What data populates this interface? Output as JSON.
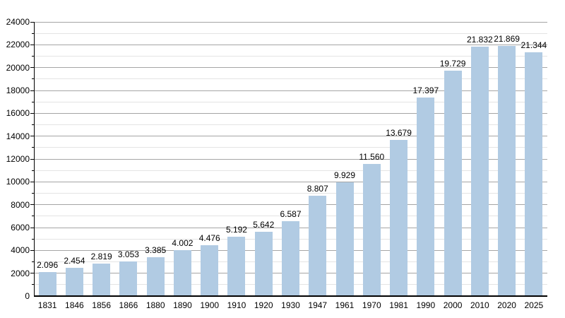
{
  "page": {
    "background": "#ffffff"
  },
  "chart_data": {
    "type": "bar",
    "title": "",
    "xlabel": "",
    "ylabel": "",
    "categories": [
      "1831",
      "1846",
      "1856",
      "1866",
      "1880",
      "1890",
      "1900",
      "1910",
      "1920",
      "1930",
      "1947",
      "1961",
      "1970",
      "1981",
      "1990",
      "2000",
      "2010",
      "2020",
      "2025"
    ],
    "values": [
      2096,
      2454,
      2819,
      3053,
      3385,
      4002,
      4476,
      5192,
      5642,
      6587,
      8807,
      9929,
      11560,
      13679,
      17397,
      19729,
      21832,
      21869,
      21344
    ],
    "value_labels": [
      "2.096",
      "2.454",
      "2.819",
      "3.053",
      "3.385",
      "4.002",
      "4.476",
      "5.192",
      "5.642",
      "6.587",
      "8.807",
      "9.929",
      "11.560",
      "13.679",
      "17.397",
      "19.729",
      "21.832",
      "21.869",
      "21.344"
    ],
    "ylim": [
      0,
      24000
    ],
    "y_major_step": 2000,
    "y_minor_step": 1000,
    "y_tick_labels": [
      "0",
      "2000",
      "4000",
      "6000",
      "8000",
      "10000",
      "12000",
      "14000",
      "16000",
      "18000",
      "20000",
      "22000",
      "24000"
    ],
    "grid": true,
    "legend": null,
    "colors": {
      "bar": "#b1cbe3",
      "major_grid": "#a5a5a5",
      "minor_grid": "#e4e4e4",
      "axis": "#000000",
      "text": "#000000"
    }
  }
}
